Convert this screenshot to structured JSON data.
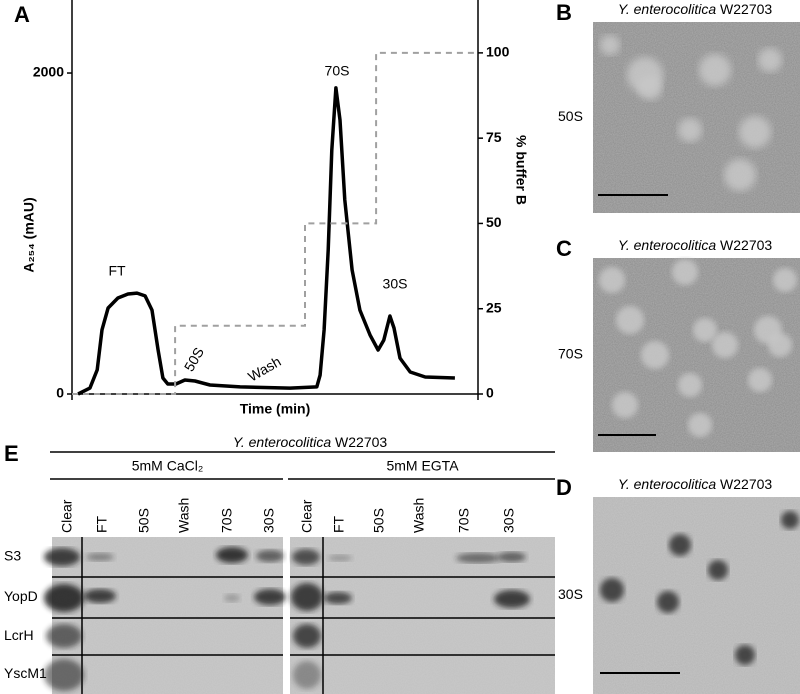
{
  "chart_data": {
    "type": "line",
    "panel": "A",
    "x_label": "Time (min)",
    "y_label": "A₂₅₄ (mAU)",
    "y2_label": "% buffer B",
    "xlim": [
      0,
      100
    ],
    "ylim": [
      0,
      2455
    ],
    "yticks": [
      0,
      2000
    ],
    "y2lim": [
      0,
      115.5
    ],
    "y2ticks": [
      0,
      25,
      50,
      75,
      100
    ],
    "series": [
      {
        "name": "A254",
        "color": "#000000",
        "x": [
          1.5,
          4.4,
          6.2,
          7.4,
          8.9,
          11.3,
          13.8,
          16.0,
          18.0,
          19.7,
          21.2,
          22.4,
          23.6,
          25.6,
          27.8,
          30.3,
          34.0,
          41.4,
          53.7,
          60.3,
          61.1,
          62.1,
          63.1,
          64.0,
          65.0,
          66.0,
          67.2,
          69.0,
          70.9,
          73.4,
          75.4,
          76.8,
          78.3,
          79.3,
          80.8,
          83.3,
          87.0,
          94.3
        ],
        "values": [
          0,
          37,
          150,
          400,
          536,
          598,
          623,
          629,
          611,
          523,
          274,
          100,
          62,
          62,
          87,
          81,
          56,
          44,
          37,
          44,
          118,
          399,
          897,
          1520,
          1907,
          1707,
          1209,
          773,
          523,
          368,
          274,
          336,
          486,
          411,
          224,
          137,
          106,
          100
        ]
      },
      {
        "name": "buffer B",
        "color": "#a0a0a0",
        "axis": "y2",
        "x": [
          0,
          25.4,
          25.4,
          57.4,
          57.4,
          74.9,
          74.9,
          100
        ],
        "values": [
          0,
          0,
          20,
          20,
          50,
          50,
          100,
          100
        ]
      }
    ],
    "annotations": [
      "FT",
      "50S",
      "Wash",
      "70S",
      "30S"
    ]
  },
  "micrographs": [
    {
      "letter": "B",
      "species": "Y. enterocolitica",
      "strain": "W22703",
      "label": "50S"
    },
    {
      "letter": "C",
      "species": "Y. enterocolitica",
      "strain": "W22703",
      "label": "70S"
    },
    {
      "letter": "D",
      "species": "Y. enterocolitica",
      "strain": "W22703",
      "label": "30S"
    }
  ],
  "blot": {
    "letter": "E",
    "species": "Y. enterocolitica",
    "strain": "W22703",
    "groups": [
      {
        "name": "5mM CaCl₂",
        "lanes": [
          "Clear",
          "FT",
          "50S",
          "Wash",
          "70S",
          "30S"
        ]
      },
      {
        "name": "5mM EGTA",
        "lanes": [
          "Clear",
          "FT",
          "50S",
          "Wash",
          "70S",
          "30S"
        ]
      }
    ],
    "rows": [
      "S3",
      "YopD",
      "LcrH",
      "YscM1"
    ]
  }
}
